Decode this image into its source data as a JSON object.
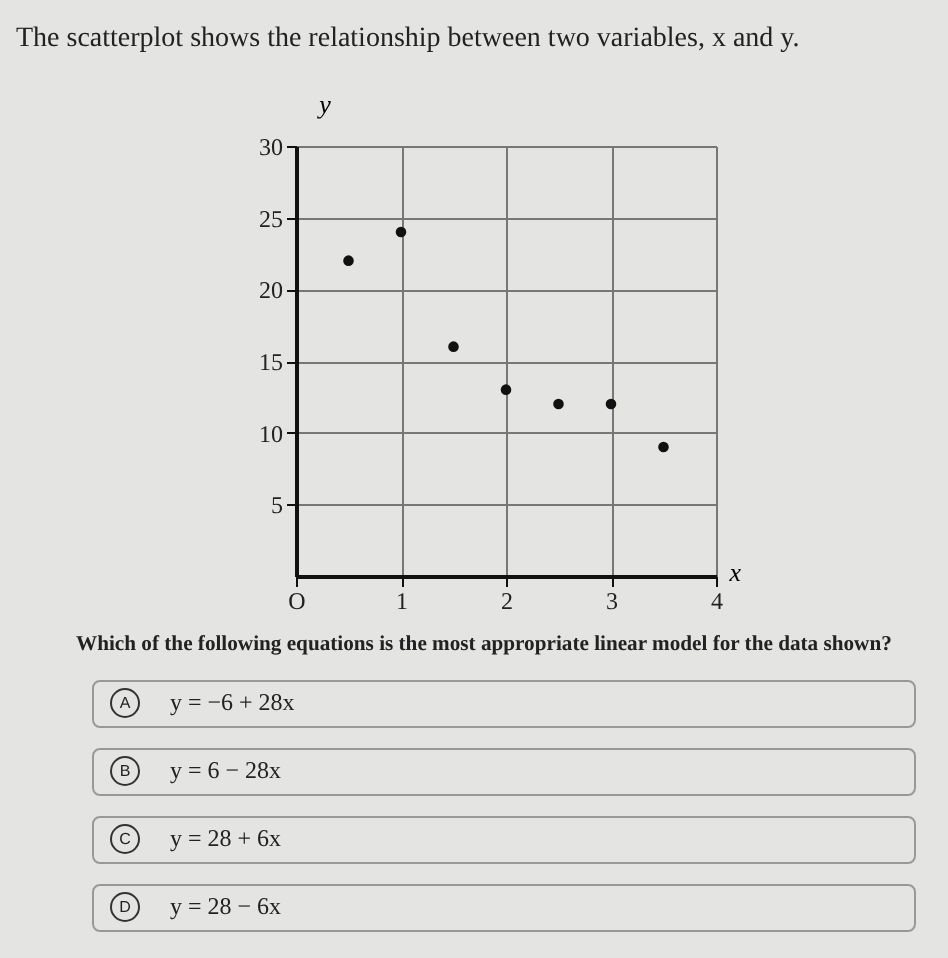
{
  "chart_data": {
    "type": "scatter",
    "title": "The scatterplot shows the relationship between two variables, x and y.",
    "xlabel": "x",
    "ylabel": "y",
    "x": [
      0.5,
      1,
      1.5,
      2,
      2.5,
      3,
      3.5
    ],
    "series": [
      {
        "color": "#111111",
        "values": [
          22,
          24,
          16,
          13,
          12,
          12,
          9
        ]
      }
    ],
    "xlim": [
      0,
      4
    ],
    "ylim": [
      0,
      30
    ],
    "xticks": [
      {
        "value": 0,
        "label": "O"
      },
      1,
      2,
      3,
      4
    ],
    "yticks": [
      5,
      10,
      15,
      20,
      25,
      30
    ],
    "grid": true,
    "marker": "circle",
    "annotations": [
      "Which of the following equations is the most appropriate linear model for the data shown?",
      "A",
      "y = −6 + 28x",
      "B",
      "y = 6 − 28x",
      "C",
      "y = 28 + 6x",
      "D",
      "y = 28 − 6x"
    ]
  }
}
